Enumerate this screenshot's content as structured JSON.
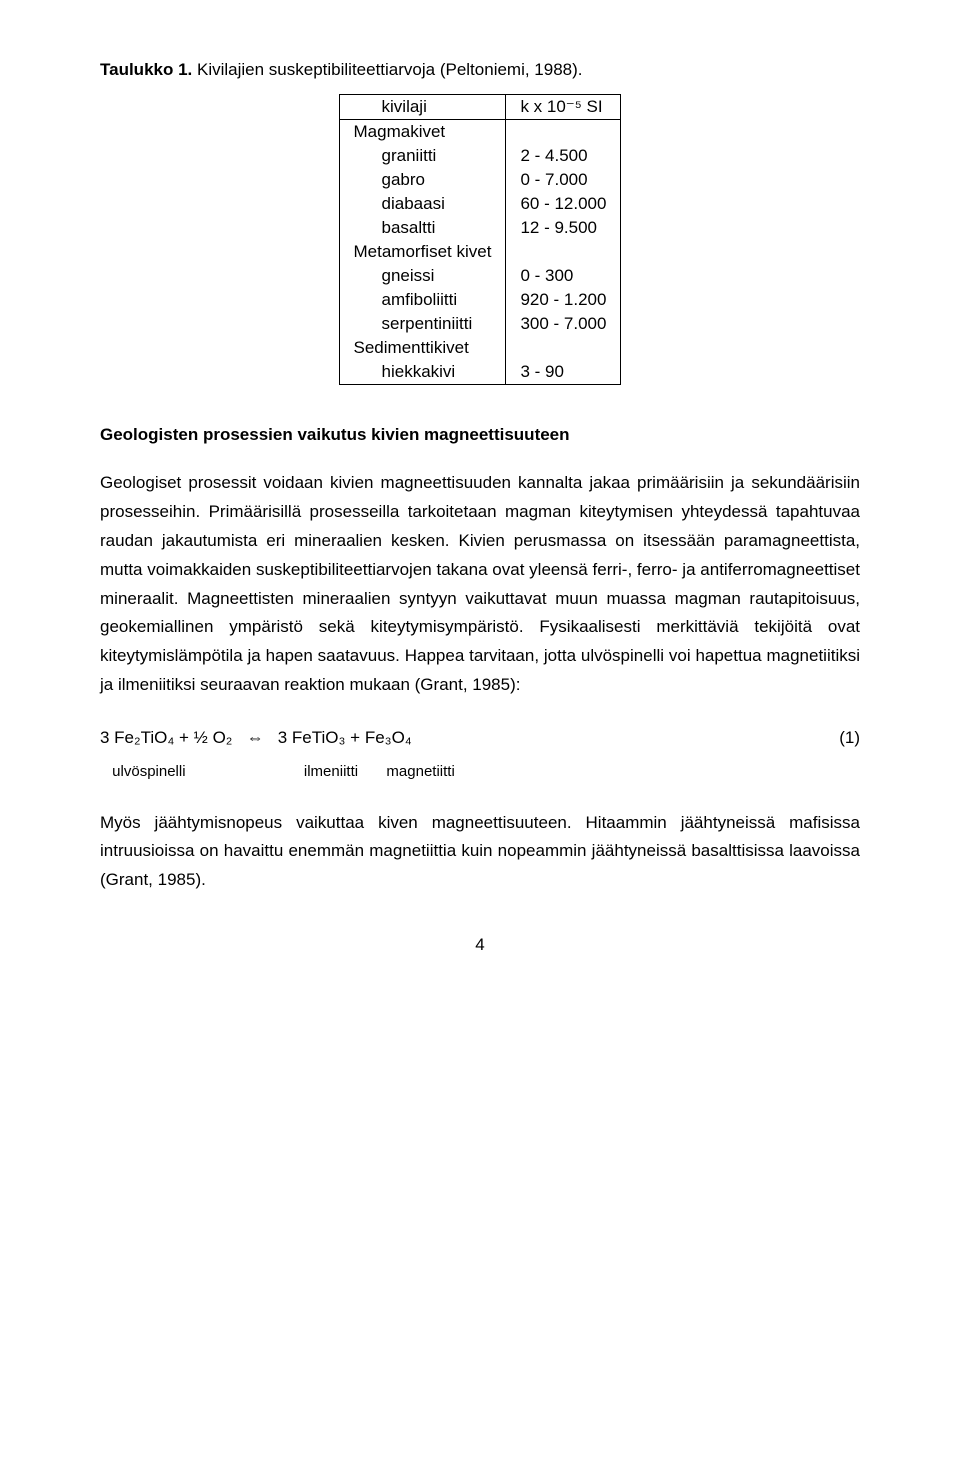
{
  "caption": {
    "label": "Taulukko 1.",
    "text": " Kivilajien suskeptibiliteettiarvoja (Peltoniemi, 1988)."
  },
  "table": {
    "col1_header": "kivilaji",
    "col2_header_html": "k x 10⁻⁵ SI",
    "groups": [
      {
        "group": "Magmakivet",
        "rows": [
          {
            "name": "graniitti",
            "val": "2 - 4.500"
          },
          {
            "name": "gabro",
            "val": "0 - 7.000"
          },
          {
            "name": "diabaasi",
            "val": "60 - 12.000"
          },
          {
            "name": "basaltti",
            "val": "12 - 9.500"
          }
        ]
      },
      {
        "group": "Metamorfiset kivet",
        "rows": [
          {
            "name": "gneissi",
            "val": "0 - 300"
          },
          {
            "name": "amfiboliitti",
            "val": "920 - 1.200"
          },
          {
            "name": "serpentiniitti",
            "val": "300 - 7.000"
          }
        ]
      },
      {
        "group": "Sedimenttikivet",
        "rows": [
          {
            "name": "hiekkakivi",
            "val": "3 - 90"
          }
        ]
      }
    ]
  },
  "heading": "Geologisten prosessien vaikutus kivien magneettisuuteen",
  "para1": "Geologiset prosessit voidaan kivien magneettisuuden kannalta jakaa primäärisiin ja sekundäärisiin prosesseihin. Primäärisillä prosesseilla tarkoitetaan magman kiteytymisen yhteydessä tapahtuvaa raudan jakautumista eri mineraalien kesken. Kivien perusmassa on itsessään paramagneettista, mutta voimakkaiden suskeptibiliteettiarvojen takana ovat yleensä ferri-, ferro- ja antiferromagneettiset mineraalit. Magneettisten mineraalien syntyyn vaikuttavat muun muassa magman rautapitoisuus, geokemiallinen ympäristö sekä kiteytymisympäristö. Fysikaalisesti merkittäviä tekijöitä ovat kiteytymislämpötila ja hapen saatavuus. Happea tarvitaan, jotta ulvöspinelli voi hapettua magnetiitiksi ja ilmeniitiksi seuraavan reaktion mukaan (Grant, 1985):",
  "equation": {
    "lhs": "3 Fe₂TiO₄ + ½ O₂",
    "arrow": "⇔",
    "rhs": "3 FeTiO₃ + Fe₃O₄",
    "num": "(1)",
    "sub1": "ulvöspinelli",
    "sub2": "ilmeniitti",
    "sub3": "magnetiitti"
  },
  "para2": "Myös jäähtymisnopeus vaikuttaa kiven magneettisuuteen. Hitaammin jäähtyneissä mafisissa intruusioissa on havaittu enemmän magnetiittia kuin nopeammin jäähtyneissä basalttisissa laavoissa (Grant, 1985).",
  "page_number": "4"
}
